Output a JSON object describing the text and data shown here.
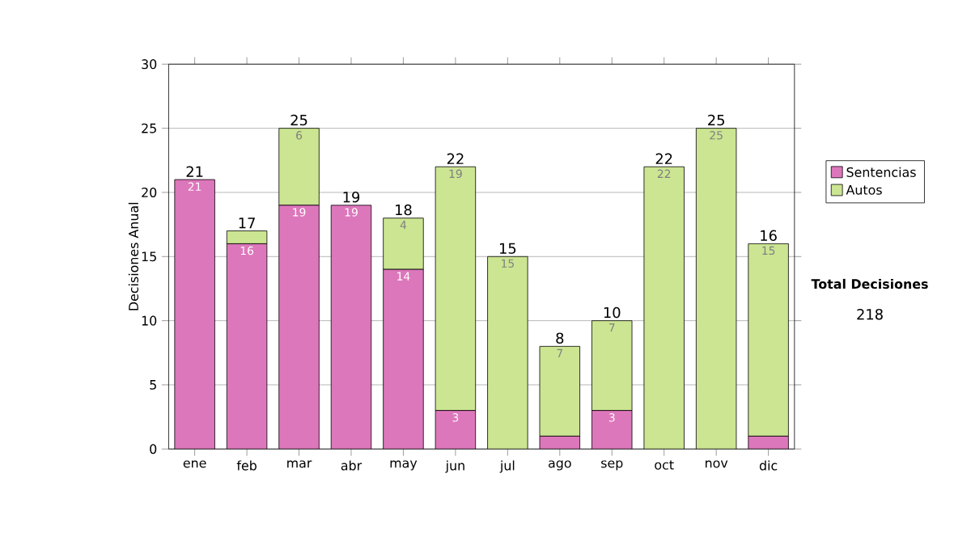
{
  "chart_data": {
    "type": "bar",
    "stacked": true,
    "ylabel": "Decisiones Anual",
    "categories": [
      "ene",
      "feb",
      "mar",
      "abr",
      "may",
      "jun",
      "jul",
      "ago",
      "sep",
      "oct",
      "nov",
      "dic"
    ],
    "series": [
      {
        "name": "Sentencias",
        "color": "#dd77bb",
        "values": [
          21,
          16,
          19,
          19,
          14,
          3,
          0,
          1,
          3,
          0,
          0,
          1
        ],
        "value_labels": [
          "21",
          "16",
          "19",
          "19",
          "14",
          "3",
          null,
          null,
          "3",
          null,
          null,
          null
        ]
      },
      {
        "name": "Autos",
        "color": "#cce592",
        "values": [
          0,
          1,
          6,
          0,
          4,
          19,
          15,
          7,
          7,
          22,
          25,
          15
        ],
        "value_labels": [
          null,
          null,
          "6",
          null,
          "4",
          "19",
          "15",
          "7",
          "7",
          "22",
          "25",
          "15"
        ]
      }
    ],
    "totals": [
      "21",
      "17",
      "25",
      "19",
      "18",
      "22",
      "15",
      "8",
      "10",
      "22",
      "25",
      "16"
    ],
    "ylim": [
      0,
      30
    ],
    "yticks": [
      0,
      5,
      10,
      15,
      20,
      25,
      30
    ],
    "grid": "y",
    "legend": "right",
    "annotations": [
      "Total Decisiones",
      "218"
    ]
  }
}
